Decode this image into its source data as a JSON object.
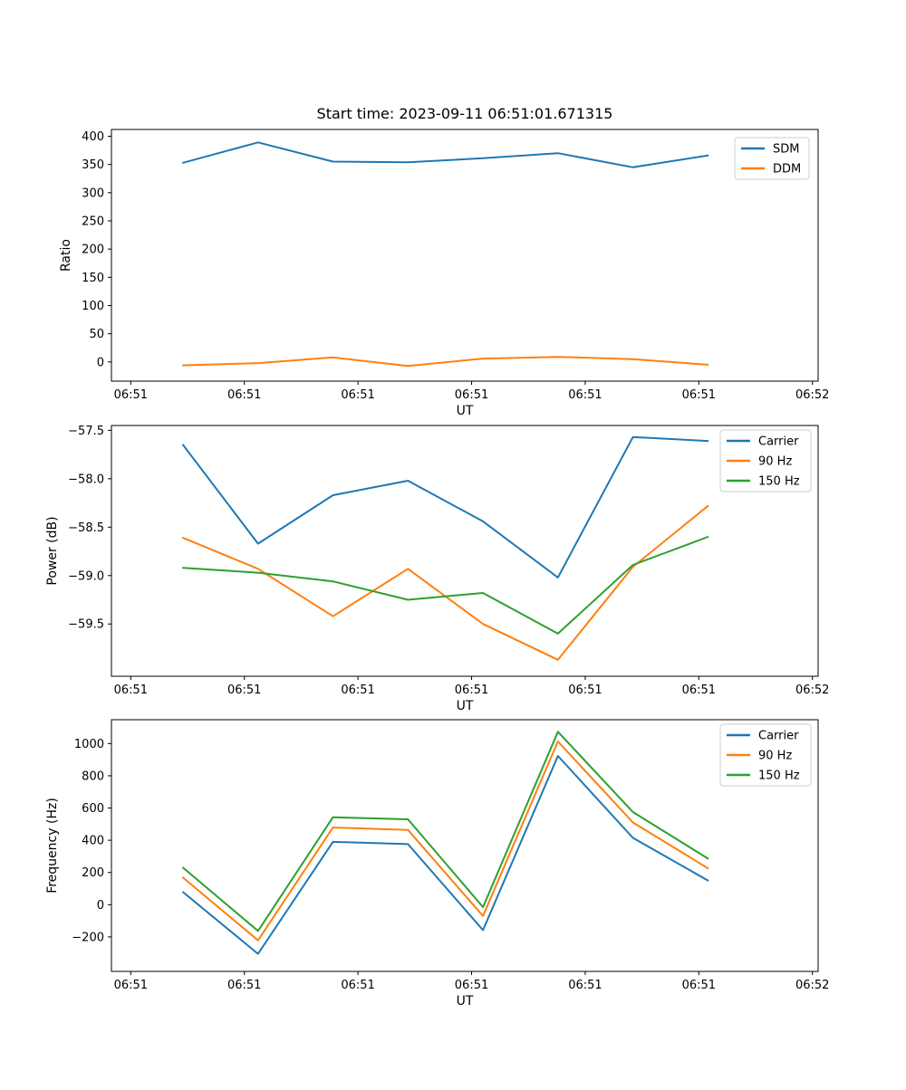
{
  "figure": {
    "title": "Start time: 2023-09-11 06:51:01.671315",
    "background": "#ffffff",
    "text_color": "#000000",
    "axis_color": "#000000"
  },
  "chart_data": [
    {
      "type": "line",
      "title": "Start time: 2023-09-11 06:51:01.671315",
      "xlabel": "UT",
      "ylabel": "Ratio",
      "xlim": [
        -1.7,
        60.5
      ],
      "ylim": [
        -34,
        412
      ],
      "grid": false,
      "legend_position": "upper right",
      "x_seconds_after_0651": [
        4.6,
        11.2,
        17.8,
        24.4,
        31.0,
        37.6,
        44.2,
        50.8
      ],
      "xticks": {
        "positions": [
          0,
          10,
          20,
          30,
          40,
          50,
          60
        ],
        "labels": [
          "06:51",
          "06:51",
          "06:51",
          "06:51",
          "06:51",
          "06:51",
          "06:52"
        ]
      },
      "yticks": {
        "positions": [
          0,
          50,
          100,
          150,
          200,
          250,
          300,
          350,
          400
        ],
        "labels": [
          "0",
          "50",
          "100",
          "150",
          "200",
          "250",
          "300",
          "350",
          "400"
        ]
      },
      "series": [
        {
          "name": "SDM",
          "color": "#1f77b4",
          "values": [
            353,
            389,
            355,
            354,
            361,
            370,
            345,
            366
          ]
        },
        {
          "name": "DDM",
          "color": "#ff7f0e",
          "values": [
            -6,
            -2,
            8,
            -7,
            6,
            9,
            5,
            -5
          ]
        }
      ]
    },
    {
      "type": "line",
      "title": "",
      "xlabel": "UT",
      "ylabel": "Power (dB)",
      "xlim": [
        -1.7,
        60.5
      ],
      "ylim": [
        -60.04,
        -57.45
      ],
      "grid": false,
      "legend_position": "upper right",
      "x_seconds_after_0651": [
        4.6,
        11.2,
        17.8,
        24.4,
        31.0,
        37.6,
        44.2,
        50.8
      ],
      "xticks": {
        "positions": [
          0,
          10,
          20,
          30,
          40,
          50,
          60
        ],
        "labels": [
          "06:51",
          "06:51",
          "06:51",
          "06:51",
          "06:51",
          "06:51",
          "06:52"
        ]
      },
      "yticks": {
        "positions": [
          -57.5,
          -58.0,
          -58.5,
          -59.0,
          -59.5
        ],
        "labels": [
          "−57.5",
          "−58.0",
          "−58.5",
          "−59.0",
          "−59.5"
        ]
      },
      "series": [
        {
          "name": "Carrier",
          "color": "#1f77b4",
          "values": [
            -57.65,
            -58.67,
            -58.17,
            -58.02,
            -58.44,
            -59.02,
            -57.57,
            -57.61
          ]
        },
        {
          "name": "90 Hz",
          "color": "#ff7f0e",
          "values": [
            -58.61,
            -58.93,
            -59.42,
            -58.93,
            -59.5,
            -59.87,
            -58.91,
            -58.28
          ]
        },
        {
          "name": "150 Hz",
          "color": "#2ca02c",
          "values": [
            -58.92,
            -58.97,
            -59.06,
            -59.25,
            -59.18,
            -59.6,
            -58.89,
            -58.6
          ]
        }
      ]
    },
    {
      "type": "line",
      "title": "",
      "xlabel": "UT",
      "ylabel": "Frequency (Hz)",
      "xlim": [
        -1.7,
        60.5
      ],
      "ylim": [
        -414,
        1148
      ],
      "grid": false,
      "legend_position": "upper right",
      "x_seconds_after_0651": [
        4.6,
        11.2,
        17.8,
        24.4,
        31.0,
        37.6,
        44.2,
        50.8
      ],
      "xticks": {
        "positions": [
          0,
          10,
          20,
          30,
          40,
          50,
          60
        ],
        "labels": [
          "06:51",
          "06:51",
          "06:51",
          "06:51",
          "06:51",
          "06:51",
          "06:52"
        ]
      },
      "yticks": {
        "positions": [
          1000,
          800,
          600,
          400,
          200,
          0,
          -200
        ],
        "labels": [
          "1000",
          "800",
          "600",
          "400",
          "200",
          "0",
          "−200"
        ]
      },
      "series": [
        {
          "name": "Carrier",
          "color": "#1f77b4",
          "values": [
            78,
            -305,
            390,
            376,
            -158,
            923,
            415,
            150
          ]
        },
        {
          "name": "90 Hz",
          "color": "#ff7f0e",
          "values": [
            168,
            -221,
            479,
            464,
            -70,
            1013,
            510,
            226
          ]
        },
        {
          "name": "150 Hz",
          "color": "#2ca02c",
          "values": [
            230,
            -163,
            543,
            530,
            -15,
            1073,
            575,
            286
          ]
        }
      ]
    }
  ]
}
